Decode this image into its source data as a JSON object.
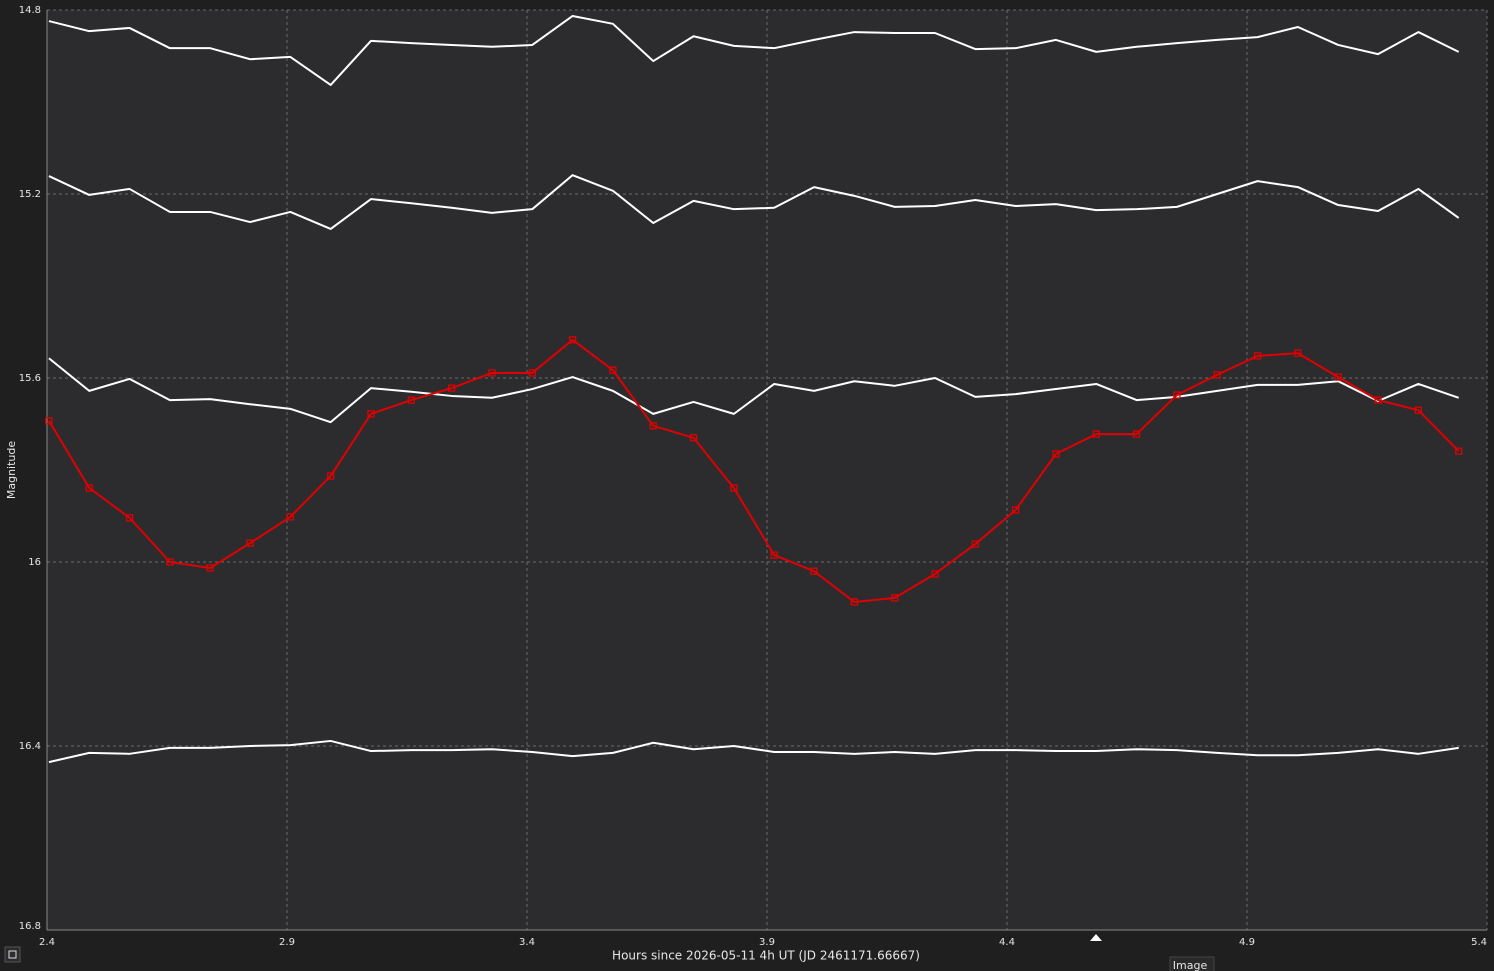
{
  "chart_data": {
    "type": "line",
    "x_label": "Hours since 2026-05-11 4h UT (JD 2461171.66667)",
    "y_label": "Magnitude",
    "x": [
      2.404,
      2.488,
      2.572,
      2.656,
      2.74,
      2.823,
      2.907,
      2.991,
      3.075,
      3.159,
      3.243,
      3.327,
      3.411,
      3.495,
      3.579,
      3.663,
      3.747,
      3.831,
      3.915,
      3.998,
      4.082,
      4.166,
      4.25,
      4.334,
      4.418,
      4.502,
      4.586,
      4.67,
      4.754,
      4.838,
      4.922,
      5.006,
      5.09,
      5.173,
      5.257,
      5.341
    ],
    "series": [
      {
        "color": "#ffffff",
        "markers": false,
        "values": [
          14.824,
          14.846,
          14.839,
          14.883,
          14.883,
          14.907,
          14.902,
          14.963,
          14.867,
          14.872,
          14.876,
          14.88,
          14.876,
          14.813,
          14.83,
          14.911,
          14.857,
          14.878,
          14.883,
          14.865,
          14.848,
          14.85,
          14.85,
          14.885,
          14.883,
          14.865,
          14.891,
          14.88,
          14.872,
          14.865,
          14.859,
          14.837,
          14.876,
          14.896,
          14.848,
          14.891
        ]
      },
      {
        "color": "#ffffff",
        "markers": false,
        "values": [
          15.161,
          15.202,
          15.189,
          15.239,
          15.239,
          15.261,
          15.239,
          15.276,
          15.211,
          15.22,
          15.23,
          15.241,
          15.233,
          15.159,
          15.193,
          15.263,
          15.215,
          15.233,
          15.23,
          15.185,
          15.204,
          15.228,
          15.226,
          15.213,
          15.226,
          15.222,
          15.235,
          15.233,
          15.228,
          15.2,
          15.172,
          15.185,
          15.224,
          15.237,
          15.189,
          15.252
        ]
      },
      {
        "color": "#ffffff",
        "markers": false,
        "values": [
          15.557,
          15.628,
          15.602,
          15.648,
          15.646,
          15.657,
          15.667,
          15.696,
          15.622,
          15.63,
          15.639,
          15.643,
          15.624,
          15.598,
          15.628,
          15.678,
          15.652,
          15.678,
          15.613,
          15.628,
          15.607,
          15.617,
          15.6,
          15.641,
          15.635,
          15.624,
          15.613,
          15.648,
          15.641,
          15.628,
          15.615,
          15.615,
          15.607,
          15.65,
          15.613,
          15.643
        ]
      },
      {
        "color": "#ffffff",
        "markers": false,
        "values": [
          16.435,
          16.415,
          16.417,
          16.404,
          16.404,
          16.4,
          16.398,
          16.389,
          16.411,
          16.409,
          16.409,
          16.407,
          16.413,
          16.422,
          16.415,
          16.393,
          16.407,
          16.4,
          16.413,
          16.413,
          16.417,
          16.413,
          16.417,
          16.409,
          16.409,
          16.411,
          16.411,
          16.407,
          16.409,
          16.415,
          16.42,
          16.42,
          16.415,
          16.407,
          16.417,
          16.404
        ]
      },
      {
        "color": "#e00000",
        "markers": true,
        "values": [
          15.693,
          15.839,
          15.904,
          16.0,
          16.013,
          15.959,
          15.902,
          15.813,
          15.678,
          15.648,
          15.622,
          15.589,
          15.589,
          15.517,
          15.583,
          15.704,
          15.73,
          15.839,
          15.985,
          16.02,
          16.087,
          16.078,
          16.026,
          15.961,
          15.887,
          15.765,
          15.722,
          15.722,
          15.637,
          15.593,
          15.552,
          15.546,
          15.598,
          15.648,
          15.67,
          15.759
        ]
      }
    ],
    "xlim": [
      2.4,
      5.4
    ],
    "xticks": [
      2.4,
      2.9,
      3.4,
      3.9,
      4.4,
      4.9,
      5.4
    ],
    "ylim": [
      16.8,
      14.8
    ],
    "yticks": [
      14.8,
      15.2,
      15.6,
      16,
      16.4,
      16.8
    ],
    "grid": true
  },
  "ui": {
    "tab": "Image"
  }
}
